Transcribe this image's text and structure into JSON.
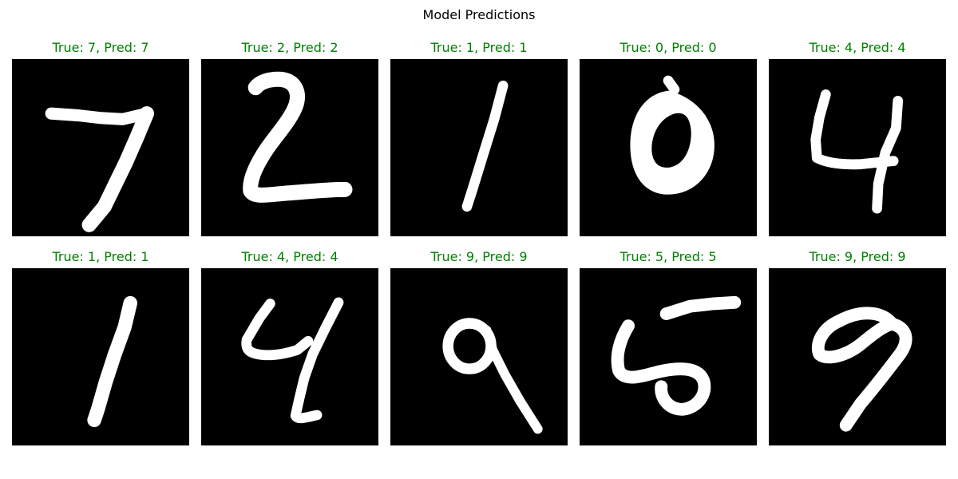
{
  "figure": {
    "title": "Model Predictions"
  },
  "colors": {
    "correct": "#008000",
    "image_background": "#000000",
    "stroke": "#ffffff"
  },
  "chart_data": {
    "type": "image-grid",
    "title": "Model Predictions",
    "rows": 2,
    "cols": 5,
    "panels": [
      {
        "title": "True: 7, Pred: 7",
        "true": 7,
        "pred": 7,
        "correct": true
      },
      {
        "title": "True: 2, Pred: 2",
        "true": 2,
        "pred": 2,
        "correct": true
      },
      {
        "title": "True: 1, Pred: 1",
        "true": 1,
        "pred": 1,
        "correct": true
      },
      {
        "title": "True: 0, Pred: 0",
        "true": 0,
        "pred": 0,
        "correct": true
      },
      {
        "title": "True: 4, Pred: 4",
        "true": 4,
        "pred": 4,
        "correct": true
      },
      {
        "title": "True: 1, Pred: 1",
        "true": 1,
        "pred": 1,
        "correct": true
      },
      {
        "title": "True: 4, Pred: 4",
        "true": 4,
        "pred": 4,
        "correct": true
      },
      {
        "title": "True: 9, Pred: 9",
        "true": 9,
        "pred": 9,
        "correct": true
      },
      {
        "title": "True: 5, Pred: 5",
        "true": 5,
        "pred": 5,
        "correct": true
      },
      {
        "title": "True: 9, Pred: 9",
        "true": 9,
        "pred": 9,
        "correct": true
      }
    ]
  }
}
